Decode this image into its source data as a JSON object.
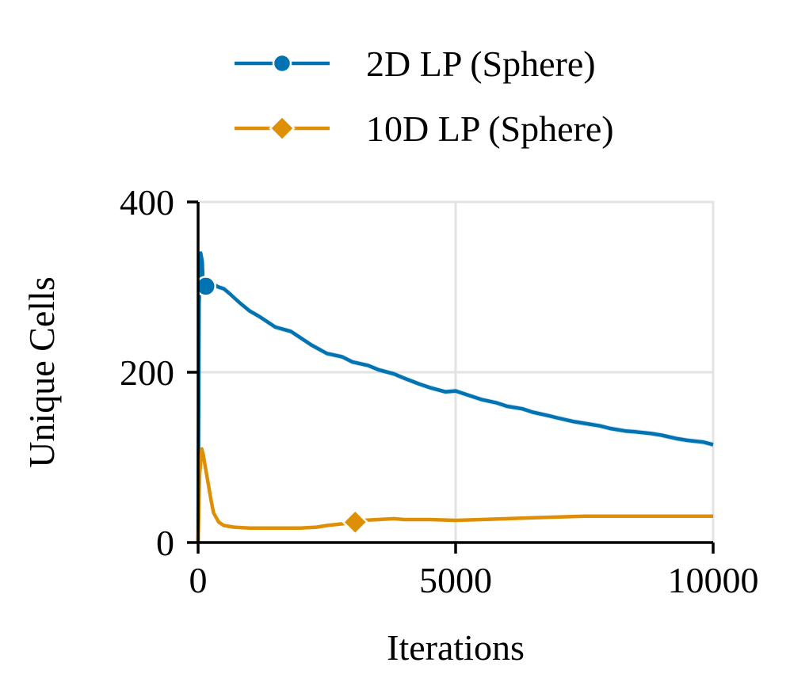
{
  "chart_data": {
    "type": "line",
    "xlabel": "Iterations",
    "ylabel": "Unique Cells",
    "xlim": [
      0,
      10000
    ],
    "ylim": [
      0,
      400
    ],
    "xticks": [
      0,
      5000,
      10000
    ],
    "xtick_labels": [
      "0",
      "5000",
      "10000"
    ],
    "yticks": [
      0,
      200,
      400
    ],
    "ytick_labels": [
      "0",
      "200",
      "400"
    ],
    "grid": true,
    "legend_position": "top-center",
    "series": [
      {
        "name": "2D LP (Sphere)",
        "color": "#0173b2",
        "marker": "circle",
        "marker_x": 150,
        "x": [
          0,
          20,
          50,
          80,
          100,
          150,
          200,
          300,
          400,
          500,
          600,
          800,
          1000,
          1200,
          1500,
          1800,
          2000,
          2200,
          2500,
          2800,
          3000,
          3300,
          3500,
          3800,
          4000,
          4300,
          4500,
          4800,
          5000,
          5300,
          5500,
          5800,
          6000,
          6300,
          6500,
          6800,
          7000,
          7300,
          7500,
          7800,
          8000,
          8300,
          8500,
          8800,
          9000,
          9300,
          9500,
          9800,
          10000
        ],
        "y": [
          0,
          280,
          340,
          330,
          300,
          301,
          300,
          303,
          300,
          298,
          293,
          282,
          272,
          265,
          253,
          248,
          240,
          232,
          222,
          218,
          212,
          208,
          203,
          198,
          193,
          186,
          182,
          177,
          178,
          172,
          168,
          164,
          160,
          157,
          153,
          149,
          146,
          142,
          140,
          137,
          134,
          131,
          130,
          128,
          126,
          122,
          120,
          118,
          115
        ]
      },
      {
        "name": "10D LP (Sphere)",
        "color": "#de8f05",
        "marker": "diamond",
        "marker_x": 3050,
        "x": [
          0,
          30,
          70,
          100,
          150,
          200,
          250,
          300,
          400,
          500,
          700,
          1000,
          1500,
          2000,
          2300,
          2500,
          2800,
          3000,
          3050,
          3200,
          3500,
          3800,
          4000,
          4500,
          5000,
          5500,
          6000,
          6500,
          7000,
          7500,
          8000,
          8500,
          9000,
          9500,
          10000
        ],
        "y": [
          0,
          80,
          110,
          103,
          85,
          68,
          50,
          35,
          24,
          20,
          18,
          17,
          17,
          17,
          18,
          20,
          22,
          24,
          24,
          26,
          27,
          28,
          27,
          27,
          26,
          27,
          28,
          29,
          30,
          31,
          31,
          31,
          31,
          31,
          31
        ]
      }
    ]
  }
}
